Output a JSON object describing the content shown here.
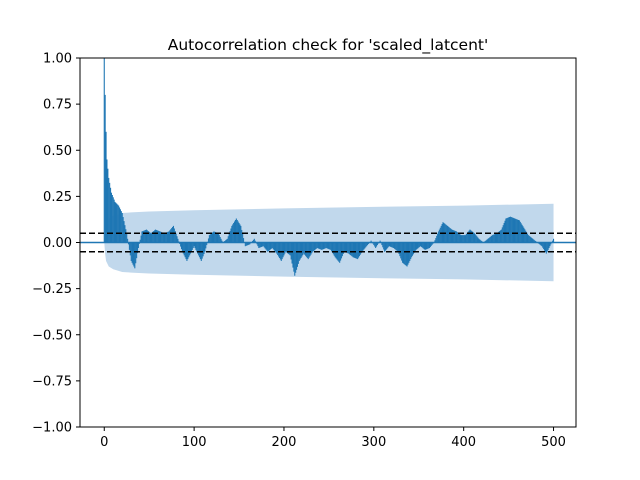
{
  "chart_data": {
    "type": "line",
    "title": "Autocorrelation check for 'scaled_latcent'",
    "xlabel": "",
    "ylabel": "",
    "xlim": [
      -27,
      525
    ],
    "ylim": [
      -1.0,
      1.0
    ],
    "xticks": [
      0,
      100,
      200,
      300,
      400,
      500
    ],
    "yticks": [
      -1.0,
      -0.75,
      -0.5,
      -0.25,
      0.0,
      0.25,
      0.5,
      0.75,
      1.0
    ],
    "xtick_labels": [
      "0",
      "100",
      "200",
      "300",
      "400",
      "500"
    ],
    "ytick_labels": [
      "−1.00",
      "−0.75",
      "−0.50",
      "−0.25",
      "0.00",
      "0.25",
      "0.50",
      "0.75",
      "1.00"
    ],
    "grid": false,
    "legend": "none",
    "max_lag": 500,
    "reference_lines": [
      0.05,
      -0.05
    ],
    "confidence_band": {
      "x": [
        0,
        1,
        2,
        5,
        10,
        20,
        30,
        50,
        100,
        200,
        300,
        400,
        500
      ],
      "upper": [
        0.0,
        0.062,
        0.1,
        0.13,
        0.145,
        0.16,
        0.163,
        0.168,
        0.175,
        0.185,
        0.193,
        0.2,
        0.21
      ],
      "lower": [
        0.0,
        -0.062,
        -0.1,
        -0.13,
        -0.145,
        -0.16,
        -0.163,
        -0.168,
        -0.175,
        -0.185,
        -0.193,
        -0.2,
        -0.21
      ]
    },
    "acf": {
      "x": [
        0,
        1,
        2,
        3,
        5,
        8,
        12,
        16,
        20,
        25,
        30,
        34,
        38,
        42,
        47,
        52,
        57,
        62,
        67,
        72,
        77,
        82,
        87,
        92,
        96,
        100,
        104,
        108,
        112,
        117,
        122,
        127,
        132,
        137,
        142,
        147,
        152,
        157,
        162,
        167,
        172,
        177,
        182,
        187,
        192,
        197,
        202,
        207,
        212,
        217,
        222,
        227,
        232,
        237,
        242,
        247,
        252,
        257,
        262,
        267,
        272,
        277,
        282,
        287,
        292,
        297,
        302,
        307,
        312,
        317,
        322,
        327,
        332,
        337,
        342,
        347,
        352,
        357,
        362,
        367,
        372,
        377,
        382,
        387,
        392,
        397,
        402,
        407,
        412,
        417,
        422,
        427,
        432,
        437,
        442,
        447,
        452,
        457,
        462,
        467,
        472,
        477,
        482,
        487,
        492,
        497,
        500
      ],
      "y": [
        1.0,
        0.8,
        0.6,
        0.45,
        0.35,
        0.27,
        0.22,
        0.2,
        0.16,
        0.05,
        -0.1,
        -0.14,
        -0.03,
        0.06,
        0.07,
        0.05,
        0.07,
        0.06,
        0.05,
        0.06,
        0.09,
        0.02,
        -0.05,
        -0.1,
        -0.06,
        -0.02,
        -0.06,
        -0.1,
        -0.05,
        0.04,
        0.06,
        0.05,
        0.0,
        0.02,
        0.09,
        0.13,
        0.09,
        -0.02,
        -0.01,
        0.02,
        -0.03,
        -0.02,
        -0.05,
        -0.03,
        -0.06,
        -0.1,
        -0.05,
        -0.07,
        -0.18,
        -0.1,
        -0.06,
        -0.09,
        -0.05,
        -0.03,
        -0.04,
        -0.03,
        -0.04,
        -0.08,
        -0.11,
        -0.05,
        -0.06,
        -0.08,
        -0.09,
        -0.05,
        -0.02,
        0.01,
        -0.03,
        0.01,
        -0.05,
        -0.02,
        -0.03,
        -0.05,
        -0.11,
        -0.13,
        -0.08,
        -0.04,
        -0.02,
        -0.04,
        -0.03,
        0.0,
        0.06,
        0.11,
        0.09,
        0.07,
        0.06,
        0.04,
        0.04,
        0.07,
        0.05,
        0.02,
        0.0,
        0.02,
        0.04,
        0.05,
        0.07,
        0.13,
        0.14,
        0.13,
        0.12,
        0.08,
        0.04,
        0.02,
        0.0,
        -0.02,
        -0.06,
        -0.01,
        0.02
      ]
    },
    "colors": {
      "acf": "#1f77b4",
      "band": "#c1d8ec",
      "zero_line": "#1f77b4",
      "reference_lines": "#000000"
    }
  }
}
